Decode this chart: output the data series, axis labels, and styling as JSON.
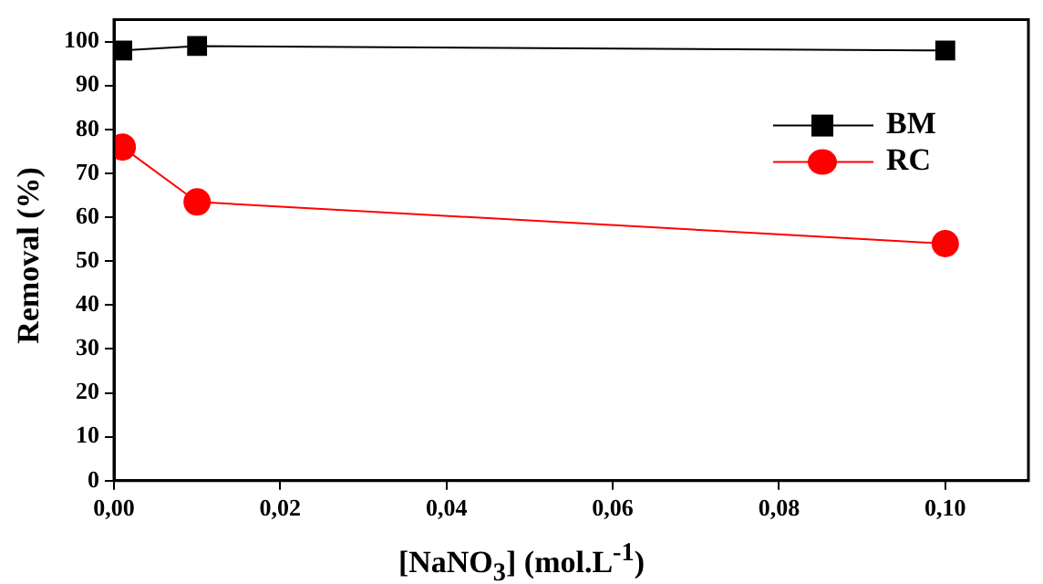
{
  "chart_data": {
    "type": "line",
    "xlabel": "[NaNO$_{3}$] (mol.L$^{-1}$)",
    "ylabel": "Removal (%)",
    "x": [
      0.001,
      0.01,
      0.1
    ],
    "series": [
      {
        "name": "BM",
        "color": "#000000",
        "marker": "square",
        "values": [
          98,
          99,
          98
        ]
      },
      {
        "name": "RC",
        "color": "#ff0000",
        "marker": "circle",
        "values": [
          76,
          63.5,
          54
        ]
      }
    ],
    "xlim": [
      0,
      0.11
    ],
    "xticks": [
      {
        "value": 0,
        "label": "0,00"
      },
      {
        "value": 0.02,
        "label": "0,02"
      },
      {
        "value": 0.04,
        "label": "0,04"
      },
      {
        "value": 0.06,
        "label": "0,06"
      },
      {
        "value": 0.08,
        "label": "0,08"
      },
      {
        "value": 0.1,
        "label": "0,10"
      }
    ],
    "ylim": [
      0,
      105
    ],
    "yticks": [
      0,
      10,
      20,
      30,
      40,
      50,
      60,
      70,
      80,
      90,
      100
    ],
    "grid": false,
    "legend": "top right",
    "line_style": "solid"
  }
}
